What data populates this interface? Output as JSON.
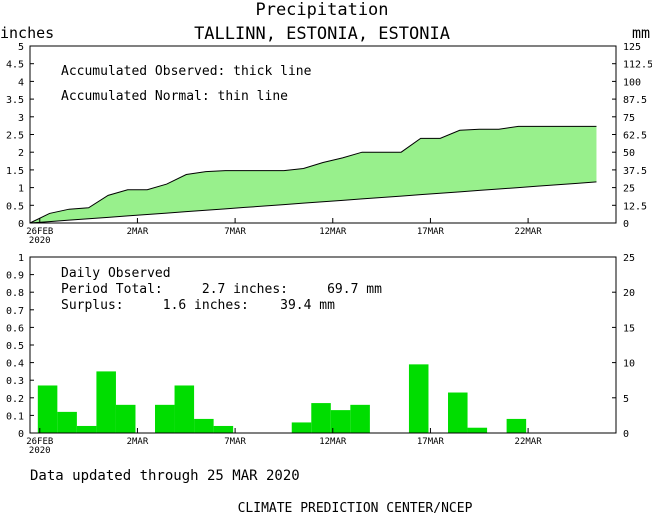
{
  "header": {
    "title": "Precipitation",
    "location": "TALLINN, ESTONIA, ESTONIA"
  },
  "accumulated_panel": {
    "y_unit_left": "inches",
    "y_unit_right": "mm",
    "legend_observed": "Accumulated Observed: thick line",
    "legend_normal": "Accumulated Normal: thin line",
    "fill_color": "#98f08c"
  },
  "daily_panel": {
    "title": "Daily Observed",
    "period_total": "Period Total:     2.7 inches:     69.7 mm",
    "surplus": "Surplus:     1.6 inches:    39.4 mm",
    "bar_color": "#00dd00"
  },
  "footer": {
    "updated": "Data updated through 25 MAR 2020",
    "credit": "CLIMATE PREDICTION CENTER/NCEP"
  },
  "chart_data": [
    {
      "type": "area",
      "title": "Precipitation",
      "subtitle": "TALLINN, ESTONIA, ESTONIA",
      "ylabel": "inches",
      "ylabel_right": "mm",
      "ylim": [
        0,
        5
      ],
      "ylim_right": [
        0,
        125
      ],
      "y_ticks": [
        0,
        0.5,
        1,
        1.5,
        2,
        2.5,
        3,
        3.5,
        4,
        4.5,
        5
      ],
      "y_tick_labels": [
        "0",
        "0.5",
        "1",
        "1.5",
        "2",
        "2.5",
        "3",
        "3.5",
        "4",
        "4.5",
        "5"
      ],
      "y_right_ticks": [
        0,
        12.5,
        25,
        37.5,
        50,
        62.5,
        75,
        87.5,
        100,
        112.5,
        125
      ],
      "y_right_tick_labels": [
        "0",
        "12.5",
        "25",
        "37.5",
        "50",
        "62.5",
        "75",
        "87.5",
        "100",
        "112.5",
        "125"
      ],
      "x_day_range": [
        0,
        30
      ],
      "x_ticks": [
        0,
        5,
        10,
        15,
        20,
        25
      ],
      "x_tick_labels": [
        "26FEB",
        "2MAR",
        "7MAR",
        "12MAR",
        "17MAR",
        "22MAR"
      ],
      "x_year_label": "2020",
      "dates": [
        "26FEB",
        "27FEB",
        "28FEB",
        "29FEB",
        "1MAR",
        "2MAR",
        "3MAR",
        "4MAR",
        "5MAR",
        "6MAR",
        "7MAR",
        "8MAR",
        "9MAR",
        "10MAR",
        "11MAR",
        "12MAR",
        "13MAR",
        "14MAR",
        "15MAR",
        "16MAR",
        "17MAR",
        "18MAR",
        "19MAR",
        "20MAR",
        "21MAR",
        "22MAR",
        "23MAR",
        "24MAR",
        "25MAR"
      ],
      "grid": false,
      "series": [
        {
          "name": "Accumulated Observed",
          "values": [
            0.27,
            0.39,
            0.43,
            0.78,
            0.94,
            0.94,
            1.1,
            1.37,
            1.45,
            1.48,
            1.48,
            1.48,
            1.48,
            1.54,
            1.71,
            1.84,
            2.0,
            2.0,
            2.0,
            2.39,
            2.39,
            2.62,
            2.65,
            2.65,
            2.73,
            2.73,
            2.73,
            2.73,
            2.73
          ]
        },
        {
          "name": "Accumulated Normal",
          "values": [
            0.04,
            0.08,
            0.12,
            0.16,
            0.2,
            0.24,
            0.28,
            0.32,
            0.36,
            0.4,
            0.44,
            0.48,
            0.52,
            0.56,
            0.6,
            0.64,
            0.68,
            0.72,
            0.76,
            0.8,
            0.84,
            0.88,
            0.92,
            0.96,
            1.0,
            1.04,
            1.08,
            1.12,
            1.16
          ]
        }
      ]
    },
    {
      "type": "bar",
      "title": "Daily Observed",
      "ylim": [
        0,
        1
      ],
      "ylim_right": [
        0,
        25
      ],
      "y_ticks": [
        0,
        0.1,
        0.2,
        0.3,
        0.4,
        0.5,
        0.6,
        0.7,
        0.8,
        0.9,
        1
      ],
      "y_tick_labels": [
        "0",
        "0.1",
        "0.2",
        "0.3",
        "0.4",
        "0.5",
        "0.6",
        "0.7",
        "0.8",
        "0.9",
        "1"
      ],
      "y_right_ticks": [
        0,
        5,
        10,
        15,
        20,
        25
      ],
      "y_right_tick_labels": [
        "0",
        "5",
        "10",
        "15",
        "20",
        "25"
      ],
      "x_day_range": [
        0,
        30
      ],
      "x_ticks": [
        0,
        5,
        10,
        15,
        20,
        25
      ],
      "x_tick_labels": [
        "26FEB",
        "2MAR",
        "7MAR",
        "12MAR",
        "17MAR",
        "22MAR"
      ],
      "x_year_label": "2020",
      "categories": [
        "26FEB",
        "27FEB",
        "28FEB",
        "29FEB",
        "1MAR",
        "2MAR",
        "3MAR",
        "4MAR",
        "5MAR",
        "6MAR",
        "7MAR",
        "8MAR",
        "9MAR",
        "10MAR",
        "11MAR",
        "12MAR",
        "13MAR",
        "14MAR",
        "15MAR",
        "16MAR",
        "17MAR",
        "18MAR",
        "19MAR",
        "20MAR",
        "21MAR",
        "22MAR",
        "23MAR",
        "24MAR",
        "25MAR"
      ],
      "values": [
        0.27,
        0.12,
        0.04,
        0.35,
        0.16,
        0,
        0.16,
        0.27,
        0.08,
        0.04,
        0,
        0,
        0,
        0.06,
        0.17,
        0.13,
        0.16,
        0,
        0,
        0.39,
        0,
        0.23,
        0.03,
        0,
        0.08,
        0,
        0,
        0,
        0
      ],
      "grid": false
    }
  ]
}
